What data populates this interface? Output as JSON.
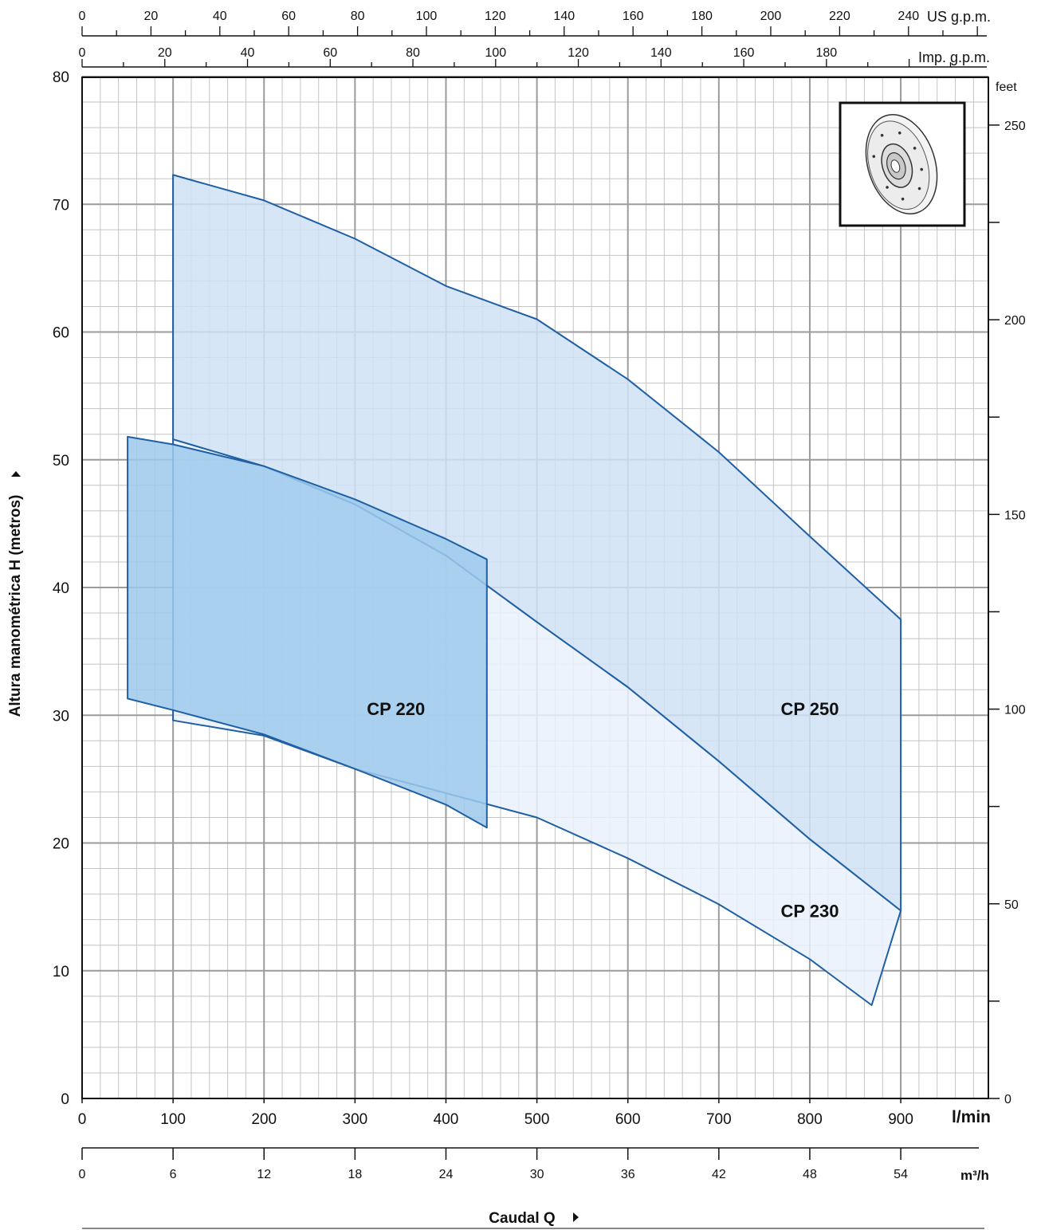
{
  "chart_data": {
    "type": "area",
    "xlabel": "Caudal Q",
    "ylabel": "Altura manométrica H  (metros)",
    "xlim": [
      0,
      990
    ],
    "ylim": [
      0,
      80
    ],
    "x_unit": "l/min",
    "y_unit": "",
    "x_ticks": [
      0,
      100,
      200,
      300,
      400,
      500,
      600,
      700,
      800,
      900
    ],
    "y_ticks": [
      0,
      10,
      20,
      30,
      40,
      50,
      60,
      70,
      80
    ],
    "grid": true,
    "secondary_axes": {
      "us_gpm": {
        "unit": "US g.p.m.",
        "ticks": [
          0,
          20,
          40,
          60,
          80,
          100,
          120,
          140,
          160,
          180,
          200,
          220,
          240
        ]
      },
      "imp_gpm": {
        "unit": "Imp. g.p.m.",
        "ticks": [
          0,
          20,
          40,
          60,
          80,
          100,
          120,
          140,
          160,
          180
        ]
      },
      "feet": {
        "unit": "feet",
        "ticks": [
          0,
          50,
          100,
          150,
          200,
          250
        ]
      },
      "m3h": {
        "unit": "m³/h",
        "ticks": [
          0,
          6,
          12,
          18,
          24,
          30,
          36,
          42,
          48,
          54
        ]
      }
    },
    "series": [
      {
        "name": "CP 230",
        "color": "#e9f1fb",
        "upper": [
          [
            100,
            51.6
          ],
          [
            200,
            49.5
          ],
          [
            300,
            46.5
          ],
          [
            400,
            42.5
          ],
          [
            500,
            37.3
          ],
          [
            600,
            32.2
          ],
          [
            700,
            26.4
          ],
          [
            800,
            20.3
          ],
          [
            900,
            14.7
          ]
        ],
        "lower": [
          [
            100,
            29.6
          ],
          [
            200,
            28.4
          ],
          [
            300,
            25.8
          ],
          [
            400,
            23.9
          ],
          [
            500,
            22.0
          ],
          [
            600,
            18.8
          ],
          [
            700,
            15.2
          ],
          [
            800,
            10.9
          ],
          [
            868,
            7.3
          ]
        ]
      },
      {
        "name": "CP 250",
        "color": "#cfe2f4",
        "upper": [
          [
            100,
            72.3
          ],
          [
            200,
            70.3
          ],
          [
            300,
            67.3
          ],
          [
            400,
            63.6
          ],
          [
            500,
            61.0
          ],
          [
            600,
            56.3
          ],
          [
            700,
            50.6
          ],
          [
            800,
            44.0
          ],
          [
            900,
            37.5
          ]
        ],
        "lower": [
          [
            100,
            51.6
          ],
          [
            200,
            49.5
          ],
          [
            300,
            46.5
          ],
          [
            400,
            42.5
          ],
          [
            500,
            37.3
          ],
          [
            600,
            32.2
          ],
          [
            700,
            26.4
          ],
          [
            800,
            20.3
          ],
          [
            900,
            14.7
          ]
        ]
      },
      {
        "name": "CP 220",
        "color": "#9ec9ec",
        "upper": [
          [
            50,
            51.8
          ],
          [
            100,
            51.2
          ],
          [
            200,
            49.5
          ],
          [
            300,
            46.9
          ],
          [
            400,
            43.8
          ],
          [
            445,
            42.2
          ]
        ],
        "lower": [
          [
            50,
            31.3
          ],
          [
            100,
            30.4
          ],
          [
            200,
            28.5
          ],
          [
            300,
            25.8
          ],
          [
            400,
            23.0
          ],
          [
            445,
            21.2
          ]
        ]
      }
    ],
    "labels": [
      {
        "text": "CP 220",
        "x": 345,
        "y": 30.5
      },
      {
        "text": "CP 250",
        "x": 800,
        "y": 30.5
      },
      {
        "text": "CP 230",
        "x": 800,
        "y": 14.7
      }
    ]
  }
}
